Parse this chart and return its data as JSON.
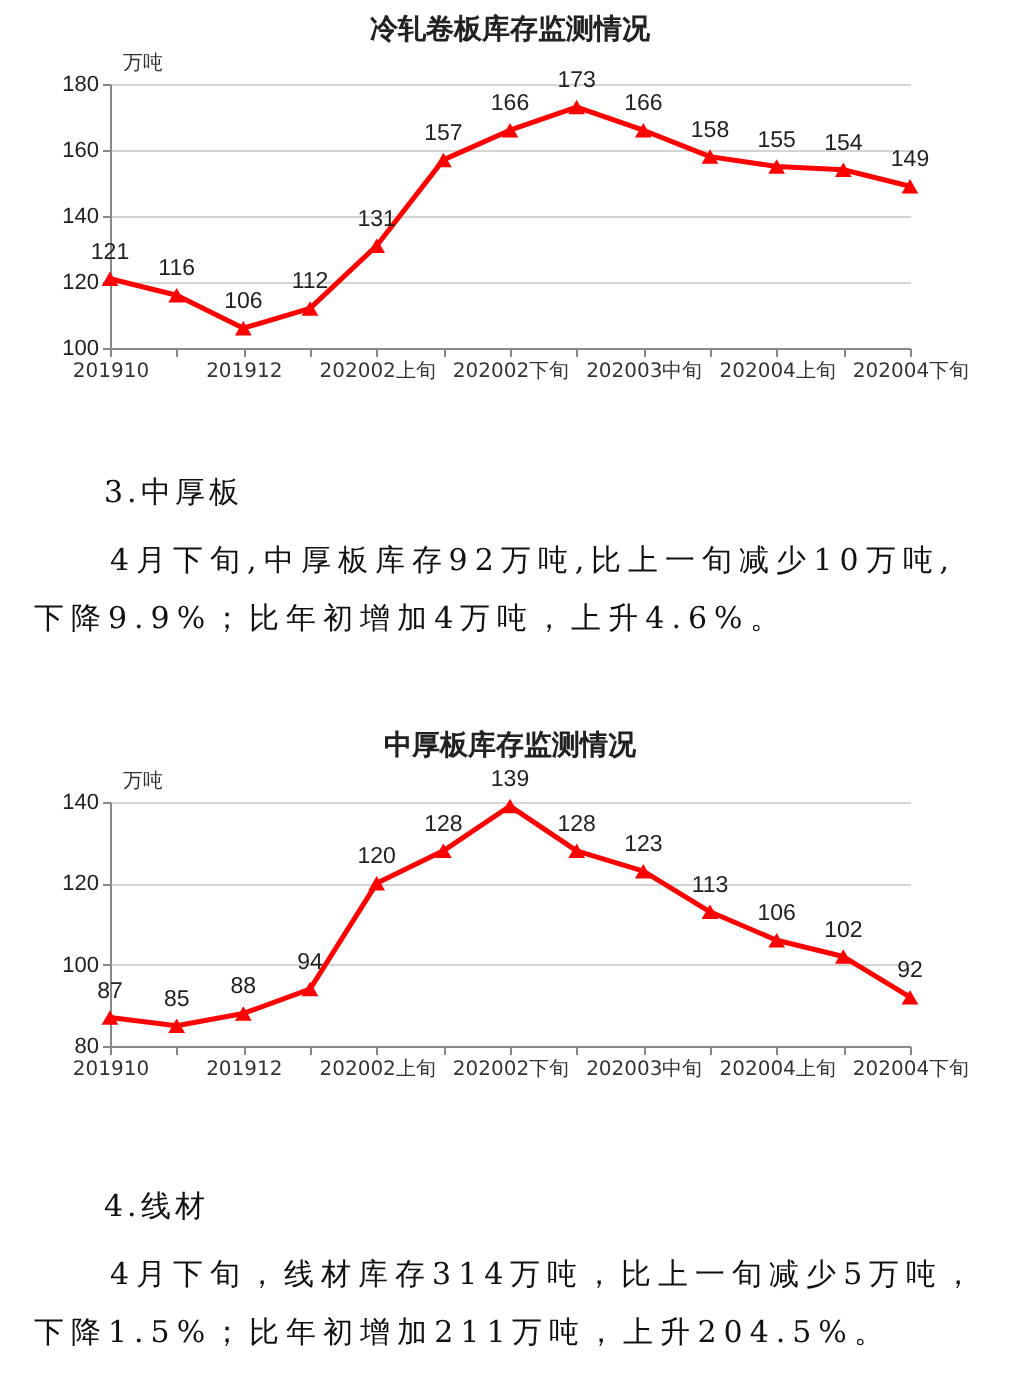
{
  "chart_data": [
    {
      "type": "line",
      "title": "冷轧卷板库存监测情况",
      "ylabel": "万吨",
      "categories": [
        "201910",
        null,
        "201912",
        null,
        "202002上旬",
        null,
        "202002下旬",
        null,
        "202003中旬",
        null,
        "202004上旬",
        null,
        "202004下旬"
      ],
      "series": [
        {
          "color": "#ff0000",
          "values": [
            121,
            116,
            106,
            112,
            131,
            157,
            166,
            173,
            166,
            158,
            155,
            154,
            149
          ]
        }
      ],
      "ylim": [
        100,
        180
      ],
      "yticks": [
        100,
        120,
        140,
        160,
        180
      ],
      "grid": "y",
      "marker": "triangle",
      "line_style": "solid",
      "data_labels": true
    },
    {
      "type": "other",
      "title": "3.中厚板",
      "annotations": [
        "4月下旬,中厚板库存92万吨,比上一旬减少10万吨,下降9.9%；比年初增加4万吨，上升4.6%。"
      ]
    },
    {
      "type": "line",
      "title": "中厚板库存监测情况",
      "ylabel": "万吨",
      "categories": [
        "201910",
        null,
        "201912",
        null,
        "202002上旬",
        null,
        "202002下旬",
        null,
        "202003中旬",
        null,
        "202004上旬",
        null,
        "202004下旬"
      ],
      "series": [
        {
          "color": "#ff0000",
          "values": [
            87,
            85,
            88,
            94,
            120,
            128,
            139,
            128,
            123,
            113,
            106,
            102,
            92
          ]
        }
      ],
      "ylim": [
        80,
        140
      ],
      "yticks": [
        80,
        100,
        120,
        140
      ],
      "grid": "y",
      "marker": "triangle",
      "line_style": "solid",
      "data_labels": true
    },
    {
      "type": "other",
      "title": "4.线材",
      "annotations": [
        "4月下旬，线材库存314万吨，比上一旬减少5万吨，下降1.5%；比年初增加211万吨，上升204.5%。"
      ]
    }
  ]
}
